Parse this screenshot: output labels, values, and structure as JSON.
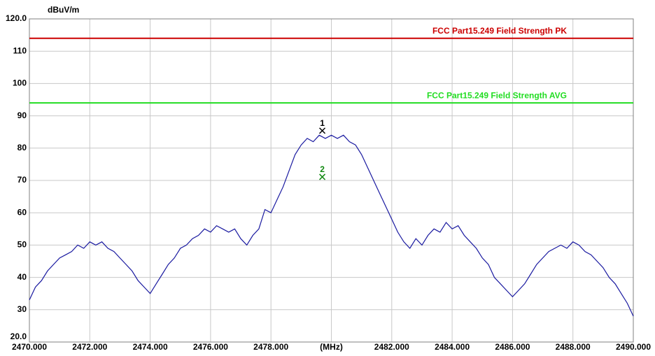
{
  "chart_data": {
    "type": "line",
    "y_label": "dBuV/m",
    "xlim": [
      2470,
      2490
    ],
    "ylim": [
      20,
      120
    ],
    "xticks": [
      {
        "value": 2470,
        "label": "2470.000"
      },
      {
        "value": 2472,
        "label": "2472.000"
      },
      {
        "value": 2474,
        "label": "2474.000"
      },
      {
        "value": 2476,
        "label": "2476.000"
      },
      {
        "value": 2478,
        "label": "2478.000"
      },
      {
        "value": 2480,
        "label": "(MHz)"
      },
      {
        "value": 2482,
        "label": "2482.000"
      },
      {
        "value": 2484,
        "label": "2484.000"
      },
      {
        "value": 2486,
        "label": "2486.000"
      },
      {
        "value": 2488,
        "label": "2488.000"
      },
      {
        "value": 2490,
        "label": "2490.000"
      }
    ],
    "yticks": [
      {
        "value": 20,
        "label": "20.0"
      },
      30,
      40,
      50,
      60,
      70,
      80,
      90,
      100,
      110,
      {
        "value": 120,
        "label": "120.0"
      }
    ],
    "grid": true,
    "limits": [
      {
        "name": "FCC Part15.249 Field Strength  PK",
        "value": 114,
        "color": "#cc0000"
      },
      {
        "name": "FCC Part15.249 Field Strength  AVG",
        "value": 94,
        "color": "#22dd22"
      }
    ],
    "markers": [
      {
        "label": "1",
        "x": 2479.7,
        "y": 85.4,
        "color": "#000000"
      },
      {
        "label": "2",
        "x": 2479.7,
        "y": 71.1,
        "color": "#118811"
      }
    ],
    "series": [
      {
        "color": "#1a1aa0",
        "x": [
          2470,
          2470.2,
          2470.4,
          2470.6,
          2470.8,
          2471,
          2471.2,
          2471.4,
          2471.6,
          2471.8,
          2472,
          2472.2,
          2472.4,
          2472.6,
          2472.8,
          2473,
          2473.2,
          2473.4,
          2473.6,
          2473.8,
          2474,
          2474.2,
          2474.4,
          2474.6,
          2474.8,
          2475,
          2475.2,
          2475.4,
          2475.6,
          2475.8,
          2476,
          2476.2,
          2476.4,
          2476.6,
          2476.8,
          2477,
          2477.2,
          2477.4,
          2477.6,
          2477.8,
          2478,
          2478.2,
          2478.4,
          2478.6,
          2478.8,
          2479,
          2479.2,
          2479.4,
          2479.6,
          2479.8,
          2480,
          2480.2,
          2480.4,
          2480.6,
          2480.8,
          2481,
          2481.2,
          2481.4,
          2481.6,
          2481.8,
          2482,
          2482.2,
          2482.4,
          2482.6,
          2482.8,
          2483,
          2483.2,
          2483.4,
          2483.6,
          2483.8,
          2484,
          2484.2,
          2484.4,
          2484.6,
          2484.8,
          2485,
          2485.2,
          2485.4,
          2485.6,
          2485.8,
          2486,
          2486.2,
          2486.4,
          2486.6,
          2486.8,
          2487,
          2487.2,
          2487.4,
          2487.6,
          2487.8,
          2488,
          2488.2,
          2488.4,
          2488.6,
          2488.8,
          2489,
          2489.2,
          2489.4,
          2489.6,
          2489.8,
          2490
        ],
        "values": [
          33,
          37,
          39,
          42,
          44,
          46,
          47,
          48,
          50,
          49,
          51,
          50,
          51,
          49,
          48,
          46,
          44,
          42,
          39,
          37,
          35,
          38,
          41,
          44,
          46,
          49,
          50,
          52,
          53,
          55,
          54,
          56,
          55,
          54,
          55,
          52,
          50,
          53,
          55,
          61,
          60,
          64,
          68,
          73,
          78,
          81,
          83,
          82,
          84,
          83,
          84,
          83,
          84,
          82,
          81,
          78,
          74,
          70,
          66,
          62,
          58,
          54,
          51,
          49,
          52,
          50,
          53,
          55,
          54,
          57,
          55,
          56,
          53,
          51,
          49,
          46,
          44,
          40,
          38,
          36,
          34,
          36,
          38,
          41,
          44,
          46,
          48,
          49,
          50,
          49,
          51,
          50,
          48,
          47,
          45,
          43,
          40,
          38,
          35,
          32,
          28
        ]
      }
    ]
  }
}
